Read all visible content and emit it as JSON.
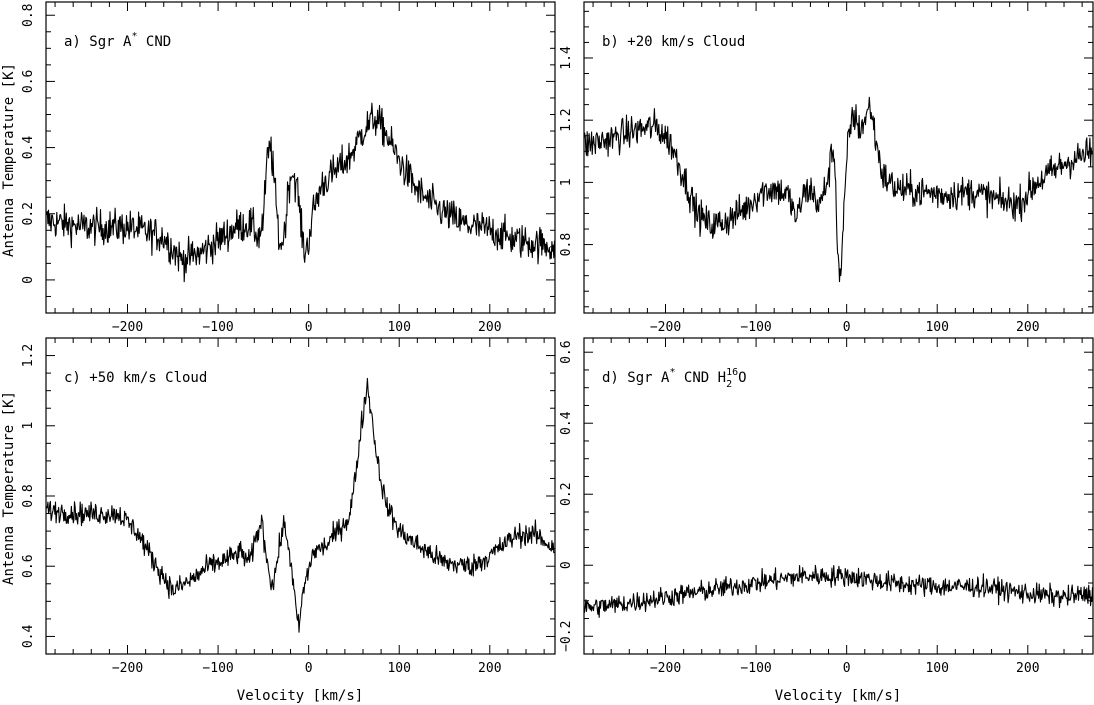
{
  "figure": {
    "xlabel": "Velocity [km/s]",
    "ylabel": "Antenna Temperature [K]"
  },
  "chart_data": [
    {
      "type": "line",
      "panel": "a",
      "title_parts": {
        "prefix": "a) Sgr A",
        "sup": "*",
        "suffix": " CND"
      },
      "xlim": [
        -290,
        272
      ],
      "ylim": [
        -0.1,
        0.84
      ],
      "xticks_major": [
        -200,
        -100,
        0,
        100,
        200
      ],
      "yticks_major": [
        0,
        0.2,
        0.4,
        0.6,
        0.8
      ],
      "ytick_labels": [
        "0",
        "0.2",
        "0.4",
        "0.6",
        "0.8"
      ],
      "xtick_labels": [
        "−200",
        "−100",
        "0",
        "100",
        "200"
      ],
      "grid": false,
      "series": [
        {
          "noise": 0.05,
          "points": [
            [
              -290,
              0.18
            ],
            [
              -250,
              0.16
            ],
            [
              -200,
              0.16
            ],
            [
              -160,
              0.13
            ],
            [
              -140,
              0.06
            ],
            [
              -120,
              0.08
            ],
            [
              -100,
              0.12
            ],
            [
              -80,
              0.16
            ],
            [
              -65,
              0.17
            ],
            [
              -55,
              0.13
            ],
            [
              -50,
              0.18
            ],
            [
              -46,
              0.36
            ],
            [
              -42,
              0.41
            ],
            [
              -38,
              0.3
            ],
            [
              -33,
              0.13
            ],
            [
              -30,
              0.1
            ],
            [
              -26,
              0.16
            ],
            [
              -22,
              0.29
            ],
            [
              -18,
              0.33
            ],
            [
              -12,
              0.27
            ],
            [
              -8,
              0.15
            ],
            [
              -4,
              0.08
            ],
            [
              0,
              0.12
            ],
            [
              6,
              0.22
            ],
            [
              15,
              0.29
            ],
            [
              30,
              0.33
            ],
            [
              45,
              0.37
            ],
            [
              60,
              0.45
            ],
            [
              72,
              0.49
            ],
            [
              82,
              0.46
            ],
            [
              100,
              0.36
            ],
            [
              120,
              0.27
            ],
            [
              140,
              0.22
            ],
            [
              170,
              0.17
            ],
            [
              200,
              0.15
            ],
            [
              230,
              0.12
            ],
            [
              272,
              0.1
            ]
          ]
        }
      ]
    },
    {
      "type": "line",
      "panel": "b",
      "title_parts": {
        "prefix": "b) +20 km/s Cloud",
        "sup": "",
        "suffix": ""
      },
      "xlim": [
        -290,
        272
      ],
      "ylim": [
        0.58,
        1.58
      ],
      "xticks_major": [
        -200,
        -100,
        0,
        100,
        200
      ],
      "yticks_major": [
        0.8,
        1,
        1.2,
        1.4
      ],
      "ytick_labels": [
        "0.8",
        "1",
        "1.2",
        "1.4"
      ],
      "xtick_labels": [
        "−200",
        "−100",
        "0",
        "100",
        "200"
      ],
      "grid": false,
      "series": [
        {
          "noise": 0.05,
          "points": [
            [
              -290,
              1.12
            ],
            [
              -260,
              1.14
            ],
            [
              -230,
              1.17
            ],
            [
              -210,
              1.18
            ],
            [
              -195,
              1.13
            ],
            [
              -180,
              1.02
            ],
            [
              -165,
              0.9
            ],
            [
              -150,
              0.86
            ],
            [
              -130,
              0.88
            ],
            [
              -110,
              0.92
            ],
            [
              -95,
              0.97
            ],
            [
              -80,
              0.98
            ],
            [
              -65,
              0.96
            ],
            [
              -55,
              0.88
            ],
            [
              -48,
              0.96
            ],
            [
              -40,
              0.98
            ],
            [
              -30,
              0.92
            ],
            [
              -20,
              1.02
            ],
            [
              -15,
              1.12
            ],
            [
              -12,
              1.0
            ],
            [
              -10,
              0.78
            ],
            [
              -7,
              0.68
            ],
            [
              -3,
              0.9
            ],
            [
              2,
              1.15
            ],
            [
              8,
              1.22
            ],
            [
              14,
              1.17
            ],
            [
              20,
              1.2
            ],
            [
              26,
              1.25
            ],
            [
              32,
              1.14
            ],
            [
              40,
              1.02
            ],
            [
              55,
              0.98
            ],
            [
              80,
              0.97
            ],
            [
              110,
              0.96
            ],
            [
              140,
              0.97
            ],
            [
              170,
              0.94
            ],
            [
              190,
              0.93
            ],
            [
              210,
              1.0
            ],
            [
              240,
              1.06
            ],
            [
              272,
              1.1
            ]
          ]
        }
      ]
    },
    {
      "type": "line",
      "panel": "c",
      "title_parts": {
        "prefix": "c) +50 km/s Cloud",
        "sup": "",
        "suffix": ""
      },
      "xlim": [
        -290,
        272
      ],
      "ylim": [
        0.35,
        1.25
      ],
      "xticks_major": [
        -200,
        -100,
        0,
        100,
        200
      ],
      "yticks_major": [
        0.4,
        0.6,
        0.8,
        1,
        1.2
      ],
      "ytick_labels": [
        "0.4",
        "0.6",
        "0.8",
        "1",
        "1.2"
      ],
      "xtick_labels": [
        "−200",
        "−100",
        "0",
        "100",
        "200"
      ],
      "grid": false,
      "series": [
        {
          "noise": 0.03,
          "points": [
            [
              -290,
              0.76
            ],
            [
              -250,
              0.75
            ],
            [
              -210,
              0.75
            ],
            [
              -190,
              0.7
            ],
            [
              -170,
              0.61
            ],
            [
              -150,
              0.53
            ],
            [
              -130,
              0.56
            ],
            [
              -110,
              0.6
            ],
            [
              -90,
              0.62
            ],
            [
              -75,
              0.64
            ],
            [
              -65,
              0.61
            ],
            [
              -58,
              0.68
            ],
            [
              -52,
              0.73
            ],
            [
              -46,
              0.62
            ],
            [
              -40,
              0.54
            ],
            [
              -35,
              0.61
            ],
            [
              -28,
              0.72
            ],
            [
              -22,
              0.66
            ],
            [
              -16,
              0.52
            ],
            [
              -11,
              0.42
            ],
            [
              -6,
              0.53
            ],
            [
              5,
              0.64
            ],
            [
              20,
              0.66
            ],
            [
              35,
              0.71
            ],
            [
              45,
              0.74
            ],
            [
              52,
              0.86
            ],
            [
              58,
              1.0
            ],
            [
              65,
              1.12
            ],
            [
              70,
              1.02
            ],
            [
              76,
              0.9
            ],
            [
              85,
              0.78
            ],
            [
              100,
              0.7
            ],
            [
              120,
              0.66
            ],
            [
              150,
              0.61
            ],
            [
              180,
              0.6
            ],
            [
              200,
              0.63
            ],
            [
              230,
              0.69
            ],
            [
              250,
              0.69
            ],
            [
              272,
              0.65
            ]
          ]
        }
      ]
    },
    {
      "type": "line",
      "panel": "d",
      "title_parts": {
        "prefix": "d) Sgr A",
        "sup": "*",
        "suffix": " CND ",
        "molecule": "H",
        "mol_sub": "2",
        "mol_sup": "16",
        "mol_tail": "O"
      },
      "xlim": [
        -290,
        272
      ],
      "ylim": [
        -0.25,
        0.64
      ],
      "xticks_major": [
        -200,
        -100,
        0,
        100,
        200
      ],
      "yticks_major": [
        -0.2,
        0,
        0.2,
        0.4,
        0.6
      ],
      "ytick_labels": [
        "−0.2",
        "0",
        "0.2",
        "0.4",
        "0.6"
      ],
      "xtick_labels": [
        "−200",
        "−100",
        "0",
        "100",
        "200"
      ],
      "grid": false,
      "series": [
        {
          "noise": 0.028,
          "points": [
            [
              -290,
              -0.12
            ],
            [
              -250,
              -0.11
            ],
            [
              -200,
              -0.09
            ],
            [
              -150,
              -0.07
            ],
            [
              -100,
              -0.05
            ],
            [
              -50,
              -0.03
            ],
            [
              0,
              -0.03
            ],
            [
              50,
              -0.05
            ],
            [
              100,
              -0.06
            ],
            [
              150,
              -0.06
            ],
            [
              200,
              -0.08
            ],
            [
              240,
              -0.09
            ],
            [
              272,
              -0.08
            ]
          ]
        }
      ]
    }
  ]
}
